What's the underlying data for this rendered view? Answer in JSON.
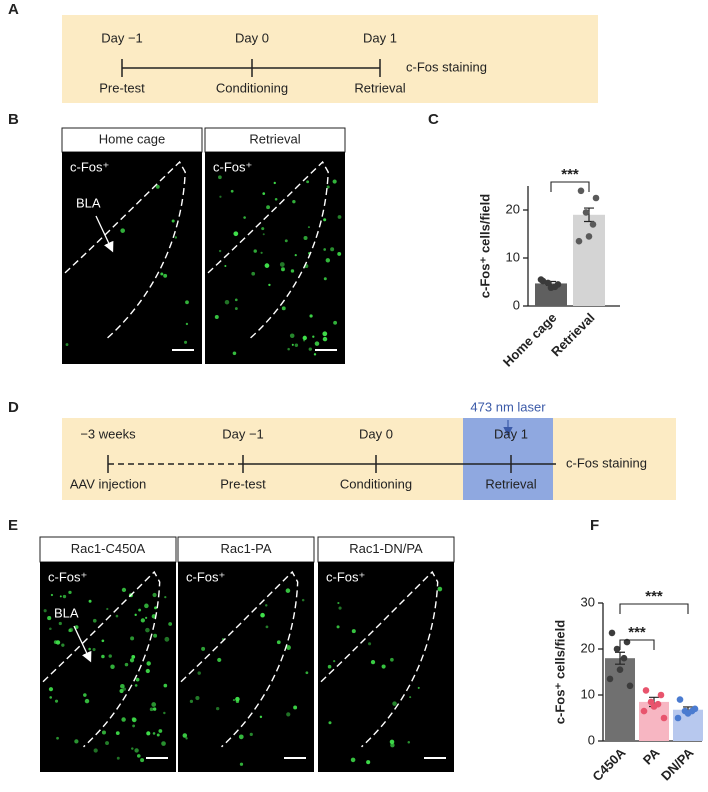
{
  "panel_labels": [
    "A",
    "B",
    "C",
    "D",
    "E",
    "F"
  ],
  "timeline_a": {
    "events": [
      {
        "above": "Day −1",
        "below": "Pre-test"
      },
      {
        "above": "Day 0",
        "below": "Conditioning"
      },
      {
        "above": "Day 1",
        "below": "Retrieval"
      }
    ],
    "end_label": "c-Fos staining"
  },
  "images_b": [
    {
      "header": "Home cage",
      "stain": "c-Fos⁺",
      "region": "BLA"
    },
    {
      "header": "Retrieval",
      "stain": "c-Fos⁺"
    }
  ],
  "timeline_d": {
    "events": [
      {
        "above": "−3 weeks",
        "below": "AAV injection"
      },
      {
        "above": "Day −1",
        "below": "Pre-test"
      },
      {
        "above": "Day 0",
        "below": "Conditioning"
      },
      {
        "above": "Day 1",
        "below": "Retrieval"
      }
    ],
    "end_label": "c-Fos staining",
    "laser": "473 nm laser"
  },
  "images_e": [
    {
      "header": "Rac1-C450A",
      "stain": "c-Fos⁺",
      "region": "BLA"
    },
    {
      "header": "Rac1-PA",
      "stain": "c-Fos⁺"
    },
    {
      "header": "Rac1-DN/PA",
      "stain": "c-Fos⁺"
    }
  ],
  "chart_data": [
    {
      "type": "bar",
      "ylabel": "c-Fos⁺ cells/field",
      "categories": [
        "Home cage",
        "Retrieval"
      ],
      "values": [
        4.7,
        19
      ],
      "errors": [
        0.4,
        1.4
      ],
      "points": [
        [
          5.2,
          4.5,
          4.8,
          4.0,
          3.8,
          5.5
        ],
        [
          24,
          22.5,
          19.5,
          17,
          14.5,
          13.5
        ]
      ],
      "bar_colors": [
        "#5f5f5f",
        "#d4d4d4"
      ],
      "point_colors": [
        "#3a3a3a",
        "#5a5a5a"
      ],
      "ylim": [
        0,
        25
      ],
      "yticks": [
        0,
        10,
        20
      ],
      "comparisons": [
        {
          "from": 0,
          "to": 1,
          "label": "***"
        }
      ]
    },
    {
      "type": "bar",
      "ylabel": "c-Fos⁺ cells/field",
      "categories": [
        "C450A",
        "PA",
        "DN/PA"
      ],
      "values": [
        18,
        8.5,
        6.8
      ],
      "errors": [
        1.3,
        1.0,
        0.6
      ],
      "points": [
        [
          23.5,
          21.5,
          20,
          18,
          15.5,
          13.5,
          12
        ],
        [
          11,
          10,
          8.5,
          8,
          7.5,
          6.5,
          5
        ],
        [
          9,
          7,
          6.5,
          6.5,
          6,
          5
        ]
      ],
      "bar_colors": [
        "#707070",
        "#f7b6c2",
        "#b7c8ee"
      ],
      "point_colors": [
        "#3c3c3c",
        "#e8546d",
        "#4a7bd0"
      ],
      "ylim": [
        0,
        30
      ],
      "yticks": [
        0,
        10,
        20,
        30
      ],
      "comparisons": [
        {
          "from": 0,
          "to": 1,
          "label": "***"
        },
        {
          "from": 0,
          "to": 2,
          "label": "***"
        }
      ]
    }
  ]
}
